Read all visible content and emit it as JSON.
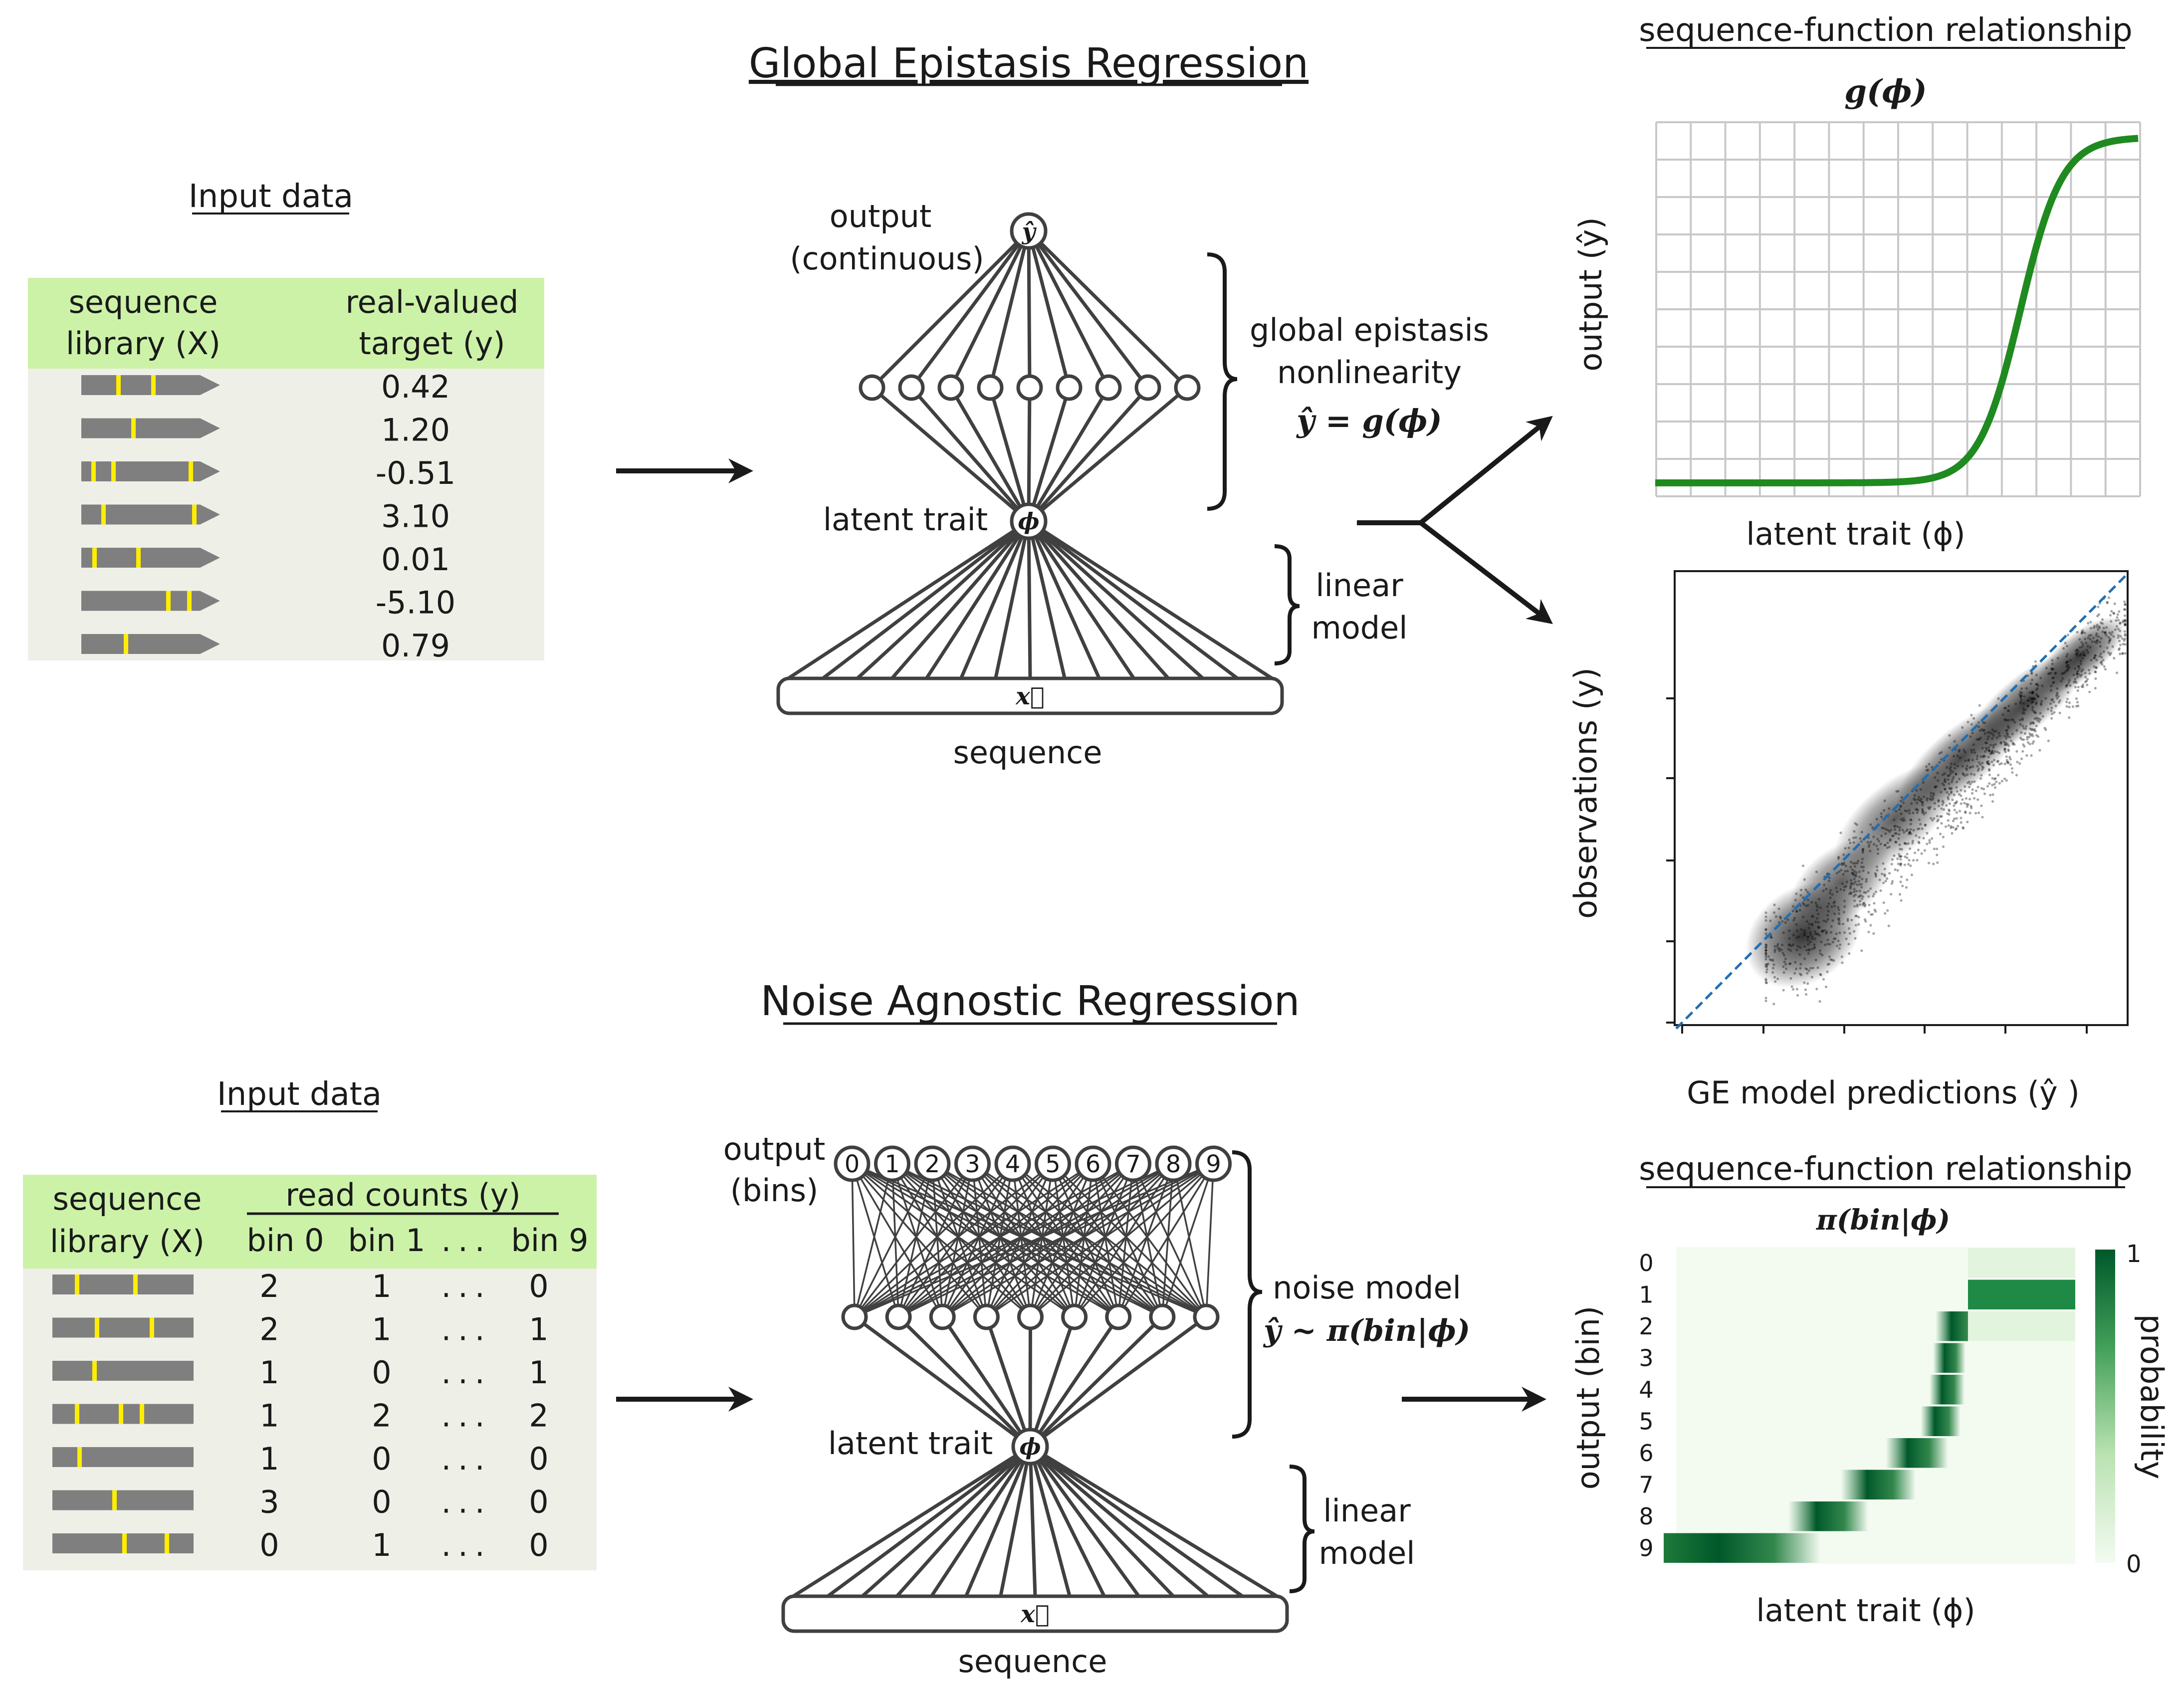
{
  "top": {
    "title": "Global Epistasis Regression",
    "input_title": "Input data",
    "table": {
      "col1": [
        "sequence",
        "library (X)"
      ],
      "col2": [
        "real-valued",
        "target (y)"
      ],
      "values": [
        "0.42",
        "1.20",
        "-0.51",
        "3.10",
        "0.01",
        "-5.10",
        "0.79"
      ]
    },
    "net": {
      "output_label": [
        "output",
        "(continuous)"
      ],
      "output_node": "ŷ",
      "latent_label": "latent trait",
      "latent_node": "ϕ",
      "seq_node": "x⃗",
      "seq_label": "sequence",
      "ge_label": [
        "global epistasis",
        "nonlinearity"
      ],
      "ge_formula": "ŷ = g(ϕ)",
      "linear_label": [
        "linear",
        "model"
      ]
    },
    "sf": {
      "title": "sequence-function relationship",
      "func": "g(ϕ)",
      "ylabel": "output (ŷ)",
      "xlabel": "latent trait (ϕ)"
    },
    "scatter": {
      "ylabel": "observations (y)",
      "xlabel": "GE model predictions (ŷ )"
    }
  },
  "bottom": {
    "title": "Noise Agnostic Regression",
    "input_title": "Input data",
    "table": {
      "col1": [
        "sequence",
        "library (X)"
      ],
      "group_header": "read counts (y)",
      "bins": [
        "bin 0",
        "bin 1",
        "...",
        "bin 9"
      ],
      "rows": [
        [
          "2",
          "1",
          "...",
          "0"
        ],
        [
          "2",
          "1",
          "...",
          "1"
        ],
        [
          "1",
          "0",
          "...",
          "1"
        ],
        [
          "1",
          "2",
          "...",
          "2"
        ],
        [
          "1",
          "0",
          "...",
          "0"
        ],
        [
          "3",
          "0",
          "...",
          "0"
        ],
        [
          "0",
          "1",
          "...",
          "0"
        ]
      ]
    },
    "net": {
      "output_label": [
        "output",
        "(bins)"
      ],
      "bin_nodes": [
        "0",
        "1",
        "2",
        "3",
        "4",
        "5",
        "6",
        "7",
        "8",
        "9"
      ],
      "latent_label": "latent trait",
      "latent_node": "ϕ",
      "seq_node": "x⃗",
      "seq_label": "sequence",
      "noise_label": "noise model",
      "noise_formula": "ŷ ~ π(bin|ϕ)",
      "linear_label": [
        "linear",
        "model"
      ]
    },
    "sf": {
      "title": "sequence-function relationship",
      "func": "π(bin|ϕ)",
      "ylabel": "output (bin)",
      "xlabel": "latent trait (ϕ)",
      "ytick_labels": [
        "0",
        "1",
        "2",
        "3",
        "4",
        "5",
        "6",
        "7",
        "8",
        "9"
      ],
      "cbar_label": "probability",
      "cbar_max": "1",
      "cbar_min": "0"
    }
  },
  "colors": {
    "table_header": "#ccf2a8",
    "table_body": "#eef0e8",
    "seq_bar": "#7f7f7f",
    "mutation": "#ffee00",
    "sigmoid": "#1f8a1f",
    "diagonal": "#1f6fb4",
    "heat_dark": "#00582a",
    "heat_light": "#f3fbf1"
  }
}
